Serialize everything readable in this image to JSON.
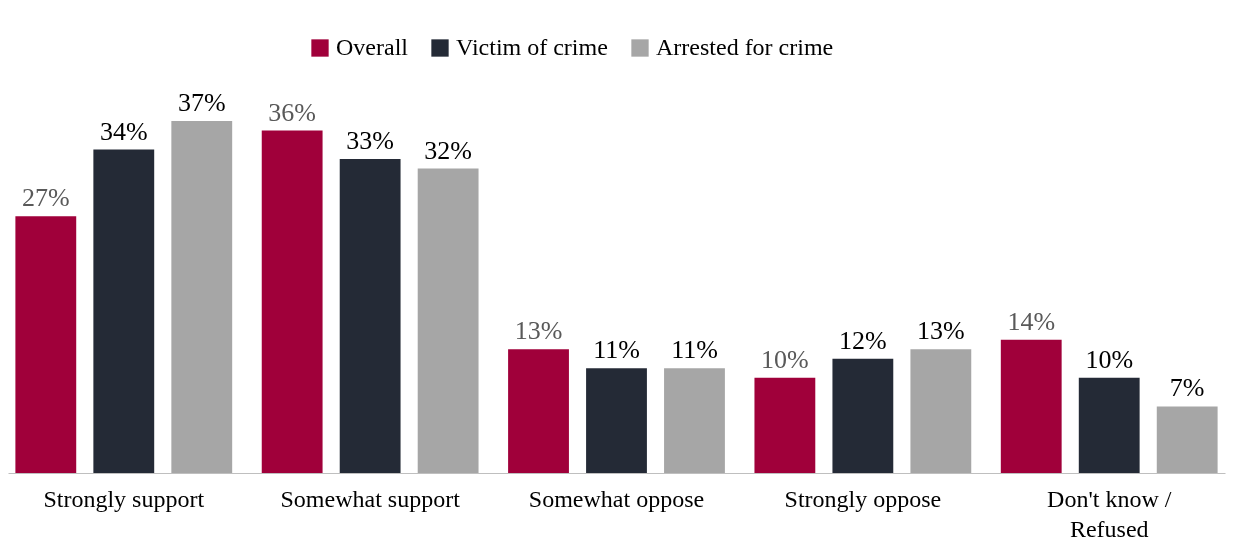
{
  "chart_data": {
    "type": "bar",
    "categories": [
      "Strongly support",
      "Somewhat support",
      "Somewhat oppose",
      "Strongly oppose",
      "Don't know / Refused"
    ],
    "series": [
      {
        "name": "Overall",
        "color": "#a0003a",
        "values": [
          27,
          36,
          13,
          10,
          14
        ],
        "value_labels": [
          "27%",
          "36%",
          "13%",
          "10%",
          "14%"
        ]
      },
      {
        "name": "Victim of crime",
        "color": "#242a36",
        "values": [
          34,
          33,
          11,
          12,
          10
        ],
        "value_labels": [
          "34%",
          "33%",
          "11%",
          "12%",
          "10%"
        ]
      },
      {
        "name": "Arrested for crime",
        "color": "#a6a6a6",
        "values": [
          37,
          32,
          11,
          13,
          7
        ],
        "value_labels": [
          "37%",
          "32%",
          "11%",
          "13%",
          "7%"
        ]
      }
    ],
    "tick_labels": "x",
    "grid": false,
    "legend": "top"
  }
}
